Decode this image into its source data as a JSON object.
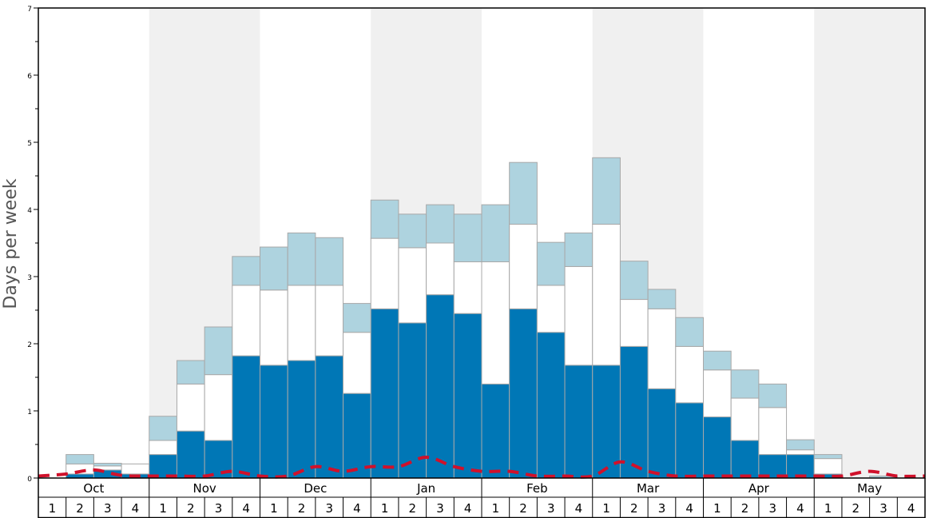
{
  "chart_data": {
    "type": "bar",
    "stacked": true,
    "ylabel": "Days per week",
    "ylim": [
      0,
      7
    ],
    "y_ticks": [
      0,
      1,
      2,
      3,
      4,
      5,
      6,
      7
    ],
    "months": [
      "Oct",
      "Nov",
      "Dec",
      "Jan",
      "Feb",
      "Mar",
      "Apr",
      "May"
    ],
    "week_labels": [
      "1",
      "2",
      "3",
      "4"
    ],
    "shaded_months": [
      "Nov",
      "Jan",
      "Mar",
      "May"
    ],
    "series": [
      {
        "kind": "dark",
        "color": "#0077b6",
        "values": [
          0.0,
          0.06,
          0.12,
          0.06,
          0.35,
          0.7,
          0.56,
          1.82,
          1.68,
          1.75,
          1.82,
          1.26,
          2.52,
          2.31,
          2.73,
          2.45,
          1.4,
          2.52,
          2.17,
          1.68,
          1.68,
          1.96,
          1.33,
          1.12,
          0.91,
          0.56,
          0.35,
          0.35,
          0.06,
          0.0,
          0.0,
          0.0
        ]
      },
      {
        "kind": "white",
        "color": "#ffffff",
        "values": [
          0.0,
          0.15,
          0.06,
          0.15,
          0.21,
          0.7,
          0.98,
          1.05,
          1.12,
          1.12,
          1.05,
          0.91,
          1.05,
          1.12,
          0.77,
          0.77,
          1.82,
          1.26,
          0.7,
          1.47,
          2.1,
          0.7,
          1.19,
          0.84,
          0.7,
          0.63,
          0.7,
          0.07,
          0.23,
          0.0,
          0.0,
          0.0
        ]
      },
      {
        "kind": "light",
        "color": "#aed3df",
        "values": [
          0.0,
          0.14,
          0.04,
          0.0,
          0.36,
          0.35,
          0.71,
          0.43,
          0.64,
          0.78,
          0.71,
          0.43,
          0.57,
          0.5,
          0.57,
          0.71,
          0.85,
          0.92,
          0.64,
          0.5,
          0.99,
          0.57,
          0.29,
          0.43,
          0.28,
          0.42,
          0.35,
          0.15,
          0.06,
          0.0,
          0.03,
          0.0
        ]
      }
    ],
    "dashed_line": {
      "color": "#d0112b",
      "values": [
        0.03,
        0.06,
        0.12,
        0.04,
        0.03,
        0.03,
        0.03,
        0.1,
        0.03,
        0.03,
        0.17,
        0.1,
        0.17,
        0.17,
        0.31,
        0.17,
        0.1,
        0.1,
        0.03,
        0.03,
        0.03,
        0.24,
        0.1,
        0.03,
        0.03,
        0.03,
        0.03,
        0.03,
        0.03,
        0.03,
        0.1,
        0.03,
        0.03
      ]
    }
  }
}
